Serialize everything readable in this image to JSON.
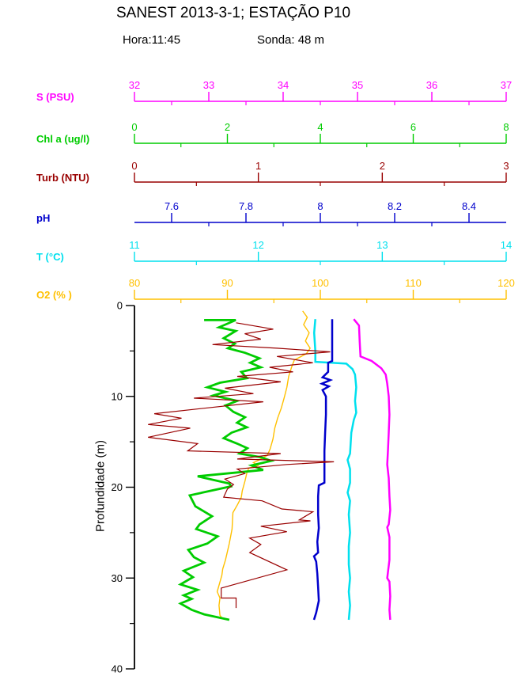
{
  "page": {
    "title": "SANEST 2013-3-1; ESTAÇÃO P10",
    "hora_label": "Hora:11:45",
    "sonda_label": "Sonda: 48 m"
  },
  "chart_data": {
    "type": "line",
    "title": "SANEST 2013-3-1; ESTAÇÃO P10",
    "subtitle": {
      "hora": "11:45",
      "sonda_m": 48
    },
    "description": "CTD vertical profile: six variables vs depth, each with its own colored top axis",
    "grid": false,
    "legend_position": "none",
    "depth_axis": {
      "label": "Profundidade (m)",
      "range": [
        0,
        40
      ],
      "major_ticks": [
        0,
        10,
        20,
        30,
        40
      ],
      "tick_labels": [
        "0",
        "10",
        "20",
        "30",
        "40"
      ],
      "minor_ticks": [
        5,
        15,
        25,
        35
      ],
      "color": "#000000"
    },
    "top_axes": [
      {
        "id": "S",
        "label": "S (PSU)",
        "color": "#ff00ff",
        "range": [
          32,
          37
        ],
        "major_ticks": [
          32,
          33,
          34,
          35,
          36,
          37
        ],
        "tick_labels": [
          "32",
          "33",
          "34",
          "35",
          "36",
          "37"
        ],
        "minor_ticks": [
          32.5,
          33.5,
          34.5,
          35.5,
          36.5
        ]
      },
      {
        "id": "Chl",
        "label": "Chl a (ug/l)",
        "color": "#00cc00",
        "range": [
          0,
          8
        ],
        "major_ticks": [
          0,
          2,
          4,
          6,
          8
        ],
        "tick_labels": [
          "0",
          "2",
          "4",
          "6",
          "8"
        ],
        "minor_ticks": [
          1,
          3,
          5,
          7
        ]
      },
      {
        "id": "Turb",
        "label": "Turb (NTU)",
        "color": "#990000",
        "range": [
          0,
          3
        ],
        "major_ticks": [
          0,
          1,
          2,
          3
        ],
        "tick_labels": [
          "0",
          "1",
          "2",
          "3"
        ],
        "minor_ticks": [
          0.5,
          1.5,
          2.5
        ]
      },
      {
        "id": "pH",
        "label": "pH",
        "color": "#0000cc",
        "range": [
          7.5,
          8.5
        ],
        "major_ticks": [
          7.6,
          7.8,
          8.0,
          8.2,
          8.4
        ],
        "tick_labels": [
          "7.6",
          "7.8",
          "8",
          "8.2",
          "8.4"
        ],
        "minor_ticks": [
          7.7,
          7.9,
          8.1,
          8.3
        ]
      },
      {
        "id": "T",
        "label": "T (°C)",
        "color": "#00e0ee",
        "range": [
          11,
          14
        ],
        "major_ticks": [
          11,
          12,
          13,
          14
        ],
        "tick_labels": [
          "11",
          "12",
          "13",
          "14"
        ],
        "minor_ticks": [
          11.5,
          12.5,
          13.5
        ]
      },
      {
        "id": "O2",
        "label": "O2 (% )",
        "color": "#ffc000",
        "range": [
          80,
          120
        ],
        "major_ticks": [
          80,
          90,
          100,
          110,
          120
        ],
        "tick_labels": [
          "80",
          "90",
          "100",
          "110",
          "120"
        ],
        "minor_ticks": [
          85,
          95,
          105,
          115
        ]
      }
    ],
    "series": [
      {
        "id": "salinity",
        "name": "S (PSU)",
        "axis": "S",
        "color": "#ff00ff",
        "width": 2.5,
        "points": [
          [
            34.95,
            1.5
          ],
          [
            35.02,
            2.2
          ],
          [
            35.03,
            4.0
          ],
          [
            35.04,
            5.6
          ],
          [
            35.19,
            6.1
          ],
          [
            35.32,
            6.9
          ],
          [
            35.38,
            7.6
          ],
          [
            35.4,
            8.6
          ],
          [
            35.42,
            10.0
          ],
          [
            35.43,
            12.0
          ],
          [
            35.42,
            14.0
          ],
          [
            35.41,
            16.0
          ],
          [
            35.4,
            17.5
          ],
          [
            35.42,
            19.0
          ],
          [
            35.43,
            21.0
          ],
          [
            35.44,
            22.5
          ],
          [
            35.42,
            24.1
          ],
          [
            35.4,
            24.4
          ],
          [
            35.43,
            25.5
          ],
          [
            35.43,
            28.0
          ],
          [
            35.4,
            30.0
          ],
          [
            35.43,
            30.4
          ],
          [
            35.44,
            32.0
          ],
          [
            35.43,
            33.5
          ],
          [
            35.44,
            34.6
          ]
        ]
      },
      {
        "id": "temperature",
        "name": "T (°C)",
        "axis": "T",
        "color": "#00e0ee",
        "width": 2.5,
        "points": [
          [
            12.46,
            1.5
          ],
          [
            12.45,
            3.0
          ],
          [
            12.46,
            5.0
          ],
          [
            12.46,
            6.2
          ],
          [
            12.71,
            6.4
          ],
          [
            12.76,
            7.0
          ],
          [
            12.78,
            7.6
          ],
          [
            12.79,
            9.0
          ],
          [
            12.78,
            10.5
          ],
          [
            12.79,
            11.8
          ],
          [
            12.77,
            12.6
          ],
          [
            12.75,
            14.0
          ],
          [
            12.74,
            16.3
          ],
          [
            12.72,
            17.0
          ],
          [
            12.74,
            18.0
          ],
          [
            12.74,
            19.5
          ],
          [
            12.72,
            20.6
          ],
          [
            12.74,
            21.5
          ],
          [
            12.73,
            23.0
          ],
          [
            12.74,
            25.0
          ],
          [
            12.73,
            26.5
          ],
          [
            12.73,
            28.5
          ],
          [
            12.74,
            30.0
          ],
          [
            12.73,
            31.5
          ],
          [
            12.74,
            33.0
          ],
          [
            12.73,
            34.6
          ]
        ]
      },
      {
        "id": "ph",
        "name": "pH",
        "axis": "pH",
        "color": "#0000cc",
        "width": 2.5,
        "points": [
          [
            8.032,
            1.5
          ],
          [
            8.032,
            6.1
          ],
          [
            8.021,
            6.3
          ],
          [
            8.021,
            7.3
          ],
          [
            8.006,
            7.9
          ],
          [
            8.027,
            8.2
          ],
          [
            8.004,
            8.6
          ],
          [
            8.023,
            8.9
          ],
          [
            8.006,
            9.3
          ],
          [
            8.015,
            10.0
          ],
          [
            8.015,
            12.0
          ],
          [
            8.013,
            14.0
          ],
          [
            8.011,
            16.0
          ],
          [
            8.011,
            19.5
          ],
          [
            7.996,
            19.8
          ],
          [
            7.994,
            21.0
          ],
          [
            7.994,
            23.0
          ],
          [
            7.996,
            24.5
          ],
          [
            7.992,
            26.0
          ],
          [
            7.994,
            27.2
          ],
          [
            7.983,
            27.6
          ],
          [
            7.989,
            28.2
          ],
          [
            7.992,
            29.5
          ],
          [
            7.994,
            31.0
          ],
          [
            7.996,
            32.5
          ],
          [
            7.989,
            33.8
          ],
          [
            7.983,
            34.6
          ]
        ]
      },
      {
        "id": "oxygen",
        "name": "O2 (%)",
        "axis": "O2",
        "color": "#ffc000",
        "width": 1.4,
        "points": [
          [
            98.1,
            0.6
          ],
          [
            98.6,
            1.3
          ],
          [
            98.2,
            2.1
          ],
          [
            98.8,
            3.0
          ],
          [
            98.4,
            3.9
          ],
          [
            98.9,
            4.7
          ],
          [
            98.5,
            5.3
          ],
          [
            97.2,
            6.0
          ],
          [
            96.9,
            6.8
          ],
          [
            96.6,
            7.8
          ],
          [
            96.4,
            9.0
          ],
          [
            96.1,
            10.2
          ],
          [
            95.8,
            11.3
          ],
          [
            95.4,
            12.4
          ],
          [
            95.1,
            13.5
          ],
          [
            94.9,
            14.7
          ],
          [
            94.6,
            15.8
          ],
          [
            94.3,
            16.5
          ],
          [
            93.4,
            17.0
          ],
          [
            92.8,
            17.3
          ],
          [
            93.3,
            17.6
          ],
          [
            92.3,
            17.9
          ],
          [
            92.1,
            18.4
          ],
          [
            91.9,
            19.3
          ],
          [
            91.6,
            20.4
          ],
          [
            91.5,
            21.1
          ],
          [
            91.1,
            21.9
          ],
          [
            90.6,
            22.8
          ],
          [
            90.5,
            24.6
          ],
          [
            90.2,
            26.2
          ],
          [
            89.8,
            28.0
          ],
          [
            89.5,
            29.0
          ],
          [
            89.4,
            29.7
          ],
          [
            89.1,
            30.8
          ],
          [
            88.9,
            31.5
          ],
          [
            89.2,
            32.2
          ],
          [
            89.1,
            33.0
          ],
          [
            89.2,
            34.1
          ],
          [
            89.5,
            34.5
          ]
        ]
      },
      {
        "id": "chlorophyll",
        "name": "Chl a (ug/l)",
        "axis": "Chl",
        "color": "#00cc00",
        "width": 2.8,
        "points": [
          [
            1.5,
            1.6
          ],
          [
            2.18,
            1.6
          ],
          [
            1.82,
            2.4
          ],
          [
            2.18,
            2.8
          ],
          [
            1.92,
            3.6
          ],
          [
            2.16,
            4.2
          ],
          [
            2.01,
            4.7
          ],
          [
            2.38,
            5.2
          ],
          [
            2.69,
            5.8
          ],
          [
            2.49,
            6.3
          ],
          [
            2.72,
            6.8
          ],
          [
            2.3,
            7.3
          ],
          [
            2.42,
            8.0
          ],
          [
            1.84,
            8.5
          ],
          [
            1.57,
            9.0
          ],
          [
            1.96,
            9.5
          ],
          [
            1.7,
            9.9
          ],
          [
            2.21,
            10.5
          ],
          [
            1.96,
            11.0
          ],
          [
            2.13,
            11.7
          ],
          [
            2.38,
            12.3
          ],
          [
            2.21,
            12.9
          ],
          [
            2.42,
            13.4
          ],
          [
            2.09,
            14.0
          ],
          [
            1.92,
            14.6
          ],
          [
            2.21,
            15.2
          ],
          [
            2.43,
            15.7
          ],
          [
            2.26,
            16.3
          ],
          [
            2.72,
            16.7
          ],
          [
            2.94,
            17.1
          ],
          [
            2.52,
            17.6
          ],
          [
            2.77,
            18.1
          ],
          [
            1.36,
            18.8
          ],
          [
            2.04,
            19.6
          ],
          [
            2.08,
            19.9
          ],
          [
            1.19,
            20.9
          ],
          [
            1.31,
            22.1
          ],
          [
            1.67,
            23.2
          ],
          [
            1.4,
            24.1
          ],
          [
            1.33,
            24.6
          ],
          [
            1.79,
            25.4
          ],
          [
            1.57,
            26.2
          ],
          [
            1.16,
            26.9
          ],
          [
            1.28,
            27.7
          ],
          [
            1.5,
            28.3
          ],
          [
            1.06,
            29.2
          ],
          [
            1.26,
            29.9
          ],
          [
            0.99,
            30.7
          ],
          [
            1.36,
            31.3
          ],
          [
            1.06,
            31.9
          ],
          [
            1.23,
            32.3
          ],
          [
            0.99,
            32.8
          ],
          [
            1.23,
            33.5
          ],
          [
            1.5,
            34.0
          ],
          [
            2.04,
            34.6
          ]
        ]
      },
      {
        "id": "turbidity",
        "name": "Turb (NTU)",
        "axis": "Turb",
        "color": "#990000",
        "width": 1.2,
        "points": [
          [
            0.82,
            1.9
          ],
          [
            1.12,
            2.6
          ],
          [
            0.89,
            3.1
          ],
          [
            1.02,
            3.7
          ],
          [
            0.63,
            4.3
          ],
          [
            1.15,
            4.7
          ],
          [
            1.58,
            5.1
          ],
          [
            1.15,
            5.6
          ],
          [
            1.44,
            6.3
          ],
          [
            1.09,
            6.8
          ],
          [
            1.28,
            7.3
          ],
          [
            0.83,
            7.8
          ],
          [
            1.18,
            8.4
          ],
          [
            0.73,
            9.1
          ],
          [
            0.96,
            9.7
          ],
          [
            0.48,
            10.2
          ],
          [
            1.04,
            10.6
          ],
          [
            0.16,
            11.9
          ],
          [
            0.38,
            12.4
          ],
          [
            0.11,
            13.1
          ],
          [
            0.45,
            13.5
          ],
          [
            0.11,
            14.5
          ],
          [
            0.51,
            15.2
          ],
          [
            0.43,
            16.0
          ],
          [
            1.18,
            16.3
          ],
          [
            0.83,
            16.9
          ],
          [
            1.61,
            17.2
          ],
          [
            1.23,
            17.5
          ],
          [
            0.83,
            18.0
          ],
          [
            0.89,
            18.5
          ],
          [
            0.73,
            19.1
          ],
          [
            0.8,
            19.7
          ],
          [
            0.75,
            20.2
          ],
          [
            0.72,
            21.1
          ],
          [
            1.03,
            21.5
          ],
          [
            1.19,
            22.4
          ],
          [
            1.44,
            22.7
          ],
          [
            1.33,
            23.6
          ],
          [
            1.42,
            23.7
          ],
          [
            1.02,
            24.3
          ],
          [
            1.23,
            24.9
          ],
          [
            0.93,
            25.6
          ],
          [
            1.02,
            26.3
          ],
          [
            0.93,
            27.2
          ],
          [
            1.23,
            29.1
          ],
          [
            0.7,
            31.1
          ],
          [
            0.7,
            32.2
          ],
          [
            0.82,
            32.2
          ],
          [
            0.82,
            33.3
          ]
        ]
      }
    ]
  }
}
